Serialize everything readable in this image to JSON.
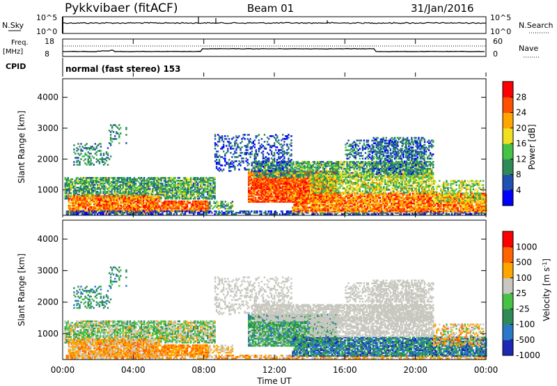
{
  "header": {
    "station": "Pykkvibaer (fitACF)",
    "beam": "Beam 01",
    "date": "31/Jan/2016"
  },
  "top_panels": {
    "nsky_label": "N.Sky",
    "nsky_ticks": [
      "10^5",
      "10^0"
    ],
    "nsearch_label": "N.Search",
    "nsearch_ticks": [
      "10^5",
      "10^0"
    ],
    "freq_label": "Freq.",
    "freq_unit": "[MHz]",
    "freq_ticks": [
      "18",
      "8"
    ],
    "nave_label": "Nave",
    "nave_ticks": [
      "60",
      "0"
    ],
    "cpid_label": "CPID",
    "cpid_text": "normal (fast stereo) 153"
  },
  "chart_data": [
    {
      "type": "heatmap",
      "name": "power",
      "ylabel": "Slant Range [km]",
      "y_ticks": [
        "4000",
        "3000",
        "2000",
        "1000"
      ],
      "y_tick_values": [
        4000,
        3000,
        2000,
        1000
      ],
      "ylim": [
        180,
        4600
      ],
      "colorbar": {
        "label": "Power [dB]",
        "ticks": [
          "28",
          "24",
          "20",
          "16",
          "12",
          "8",
          "4"
        ],
        "range": [
          0,
          32
        ],
        "colors": [
          "#0000ff",
          "#2050b0",
          "#2e8b57",
          "#46c246",
          "#f0e020",
          "#ffa500",
          "#ff5000",
          "#ff0000"
        ]
      },
      "x_ticks_hours": [
        0,
        4,
        8,
        12,
        16,
        20,
        24
      ],
      "grid": false
    },
    {
      "type": "heatmap",
      "name": "velocity",
      "ylabel": "Slant Range [km]",
      "y_ticks": [
        "4000",
        "3000",
        "2000",
        "1000"
      ],
      "y_tick_values": [
        4000,
        3000,
        2000,
        1000
      ],
      "ylim": [
        180,
        4600
      ],
      "colorbar": {
        "label": "Velocity [m s^-1]",
        "ticks": [
          "1000",
          "500",
          "100",
          "25",
          "-25",
          "-100",
          "-500",
          "-1000"
        ],
        "colors": [
          "#1e28b4",
          "#2a78c8",
          "#2e8b57",
          "#46c246",
          "#c8c8c0",
          "#ffa500",
          "#ff6400",
          "#ff0000"
        ]
      },
      "x_ticks_hours": [
        0,
        4,
        8,
        12,
        16,
        20,
        24
      ],
      "grid": false
    }
  ],
  "xaxis": {
    "ticks": [
      "00:00",
      "04:00",
      "08:00",
      "12:00",
      "16:00",
      "20:00",
      "00:00"
    ],
    "label": "Time UT"
  },
  "style": {
    "power_colors": [
      "#0000ff",
      "#2050b0",
      "#2e8b57",
      "#46c246",
      "#f0e020",
      "#ffa500",
      "#ff5000",
      "#ff0000"
    ],
    "velocity_colors": [
      "#1e28b4",
      "#2a78c8",
      "#2e8b57",
      "#46c246",
      "#c8c8c0",
      "#ffa500",
      "#ff6400",
      "#ff0000"
    ]
  }
}
